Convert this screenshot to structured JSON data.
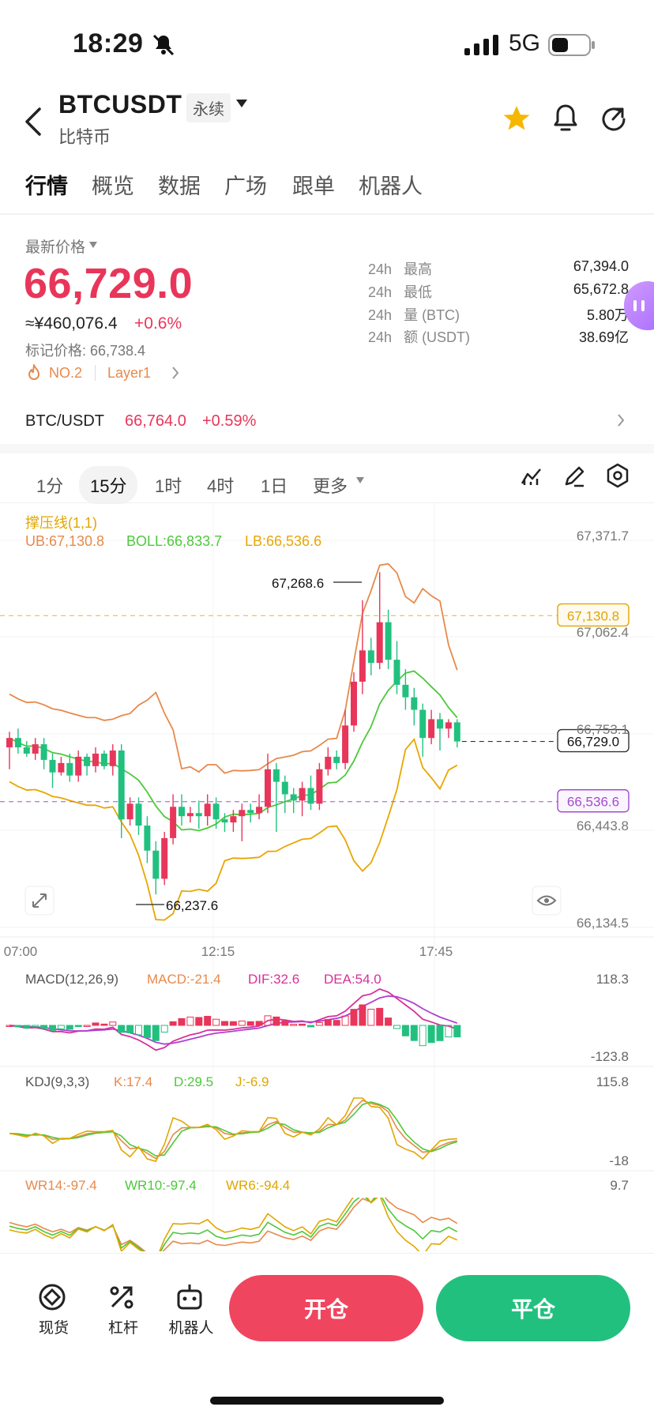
{
  "status_bar": {
    "time": "18:29",
    "network": "5G"
  },
  "header": {
    "symbol": "BTCUSDT",
    "tag": "永续",
    "coin_name": "比特币",
    "icons": [
      "back-icon",
      "dropdown-icon",
      "star-icon",
      "alert-icon",
      "share-icon"
    ]
  },
  "tabs": [
    "行情",
    "概览",
    "数据",
    "广场",
    "跟单",
    "机器人"
  ],
  "active_tab": 0,
  "price": {
    "label": "最新价格",
    "last": "66,729.0",
    "cny": "≈¥460,076.4",
    "change": "+0.6%",
    "mark": "标记价格: 66,738.4",
    "rank": "NO.2",
    "category": "Layer1",
    "up_color": "#e8365a",
    "down_color": "#22c07f"
  },
  "stats": [
    {
      "period": "24h",
      "label": "最高",
      "value": "67,394.0"
    },
    {
      "period": "24h",
      "label": "最低",
      "value": "65,672.8"
    },
    {
      "period": "24h",
      "label": "量 (BTC)",
      "value": "5.80万"
    },
    {
      "period": "24h",
      "label": "额 (USDT)",
      "value": "38.69亿"
    }
  ],
  "spot": {
    "pair": "BTC/USDT",
    "price": "66,764.0",
    "change": "+0.59%"
  },
  "intervals": [
    "1分",
    "15分",
    "1时",
    "4时",
    "1日",
    "更多"
  ],
  "active_interval": 1,
  "chart_data": {
    "type": "candlestick",
    "main_legend": {
      "title": "撑压线(1,1)",
      "ub": "UB:67,130.8",
      "boll": "BOLL:66,833.7",
      "lb": "LB:66,536.6"
    },
    "y_ticks": [
      "67,371.7",
      "67,062.4",
      "66,753.1",
      "66,443.8",
      "66,134.5"
    ],
    "y_range": [
      66134.5,
      67371.7
    ],
    "x_ticks": [
      "07:00",
      "12:15",
      "17:45"
    ],
    "price_lines": {
      "ub": "67,130.8",
      "last": "66,729.0",
      "lb": "66,536.6"
    },
    "annotations": {
      "high": "67,268.6",
      "low": "66,237.6"
    },
    "candles": [
      [
        66710,
        66740,
        66640,
        66760
      ],
      [
        66740,
        66710,
        66690,
        66770
      ],
      [
        66710,
        66690,
        66680,
        66730
      ],
      [
        66690,
        66720,
        66670,
        66740
      ],
      [
        66720,
        66670,
        66640,
        66740
      ],
      [
        66670,
        66630,
        66580,
        66690
      ],
      [
        66630,
        66660,
        66620,
        66680
      ],
      [
        66660,
        66620,
        66600,
        66690
      ],
      [
        66620,
        66680,
        66600,
        66700
      ],
      [
        66680,
        66650,
        66620,
        66690
      ],
      [
        66650,
        66690,
        66630,
        66710
      ],
      [
        66690,
        66650,
        66640,
        66700
      ],
      [
        66650,
        66700,
        66620,
        66720
      ],
      [
        66700,
        66480,
        66420,
        66720
      ],
      [
        66480,
        66530,
        66460,
        66550
      ],
      [
        66530,
        66460,
        66430,
        66550
      ],
      [
        66460,
        66380,
        66340,
        66490
      ],
      [
        66380,
        66290,
        66240,
        66410
      ],
      [
        66290,
        66420,
        66270,
        66440
      ],
      [
        66420,
        66520,
        66400,
        66560
      ],
      [
        66520,
        66490,
        66460,
        66560
      ],
      [
        66490,
        66500,
        66470,
        66520
      ],
      [
        66500,
        66490,
        66450,
        66540
      ],
      [
        66490,
        66530,
        66460,
        66560
      ],
      [
        66530,
        66480,
        66450,
        66550
      ],
      [
        66480,
        66470,
        66440,
        66500
      ],
      [
        66470,
        66490,
        66440,
        66510
      ],
      [
        66490,
        66510,
        66410,
        66530
      ],
      [
        66510,
        66500,
        66470,
        66530
      ],
      [
        66500,
        66520,
        66480,
        66560
      ],
      [
        66520,
        66640,
        66500,
        66690
      ],
      [
        66640,
        66600,
        66440,
        66660
      ],
      [
        66600,
        66560,
        66500,
        66620
      ],
      [
        66560,
        66540,
        66500,
        66580
      ],
      [
        66540,
        66580,
        66490,
        66600
      ],
      [
        66580,
        66530,
        66510,
        66620
      ],
      [
        66530,
        66640,
        66510,
        66660
      ],
      [
        66640,
        66680,
        66620,
        66710
      ],
      [
        66680,
        66660,
        66640,
        66700
      ],
      [
        66660,
        66780,
        66640,
        66830
      ],
      [
        66780,
        66920,
        66760,
        66950
      ],
      [
        66920,
        67020,
        66880,
        67180
      ],
      [
        67020,
        66980,
        66940,
        67060
      ],
      [
        66980,
        67110,
        66960,
        67270
      ],
      [
        67110,
        66990,
        66960,
        67150
      ],
      [
        66990,
        66910,
        66880,
        67050
      ],
      [
        66910,
        66870,
        66830,
        66960
      ],
      [
        66870,
        66830,
        66780,
        66900
      ],
      [
        66830,
        66740,
        66680,
        66850
      ],
      [
        66740,
        66800,
        66720,
        66830
      ],
      [
        66800,
        66770,
        66700,
        66820
      ],
      [
        66770,
        66790,
        66740,
        66800
      ],
      [
        66790,
        66729,
        66710,
        66800
      ]
    ],
    "macd": {
      "label": "MACD(12,26,9)",
      "macd": "MACD:-21.4",
      "dif": "DIF:32.6",
      "dea": "DEA:54.0",
      "top": "118.3",
      "bottom": "-123.8"
    },
    "kdj": {
      "label": "KDJ(9,3,3)",
      "k": "K:17.4",
      "d": "D:29.5",
      "j": "J:-6.9",
      "top": "115.8",
      "bottom": "-18"
    },
    "wr": {
      "wr14": "WR14:-97.4",
      "wr10": "WR10:-97.4",
      "wr6": "WR6:-94.4",
      "top": "9.7"
    }
  },
  "bottom_nav": [
    {
      "label": "现货",
      "icon": "spot-icon"
    },
    {
      "label": "杠杆",
      "icon": "leverage-icon"
    },
    {
      "label": "机器人",
      "icon": "robot-icon"
    }
  ],
  "actions": {
    "open": "开仓",
    "close": "平仓"
  }
}
